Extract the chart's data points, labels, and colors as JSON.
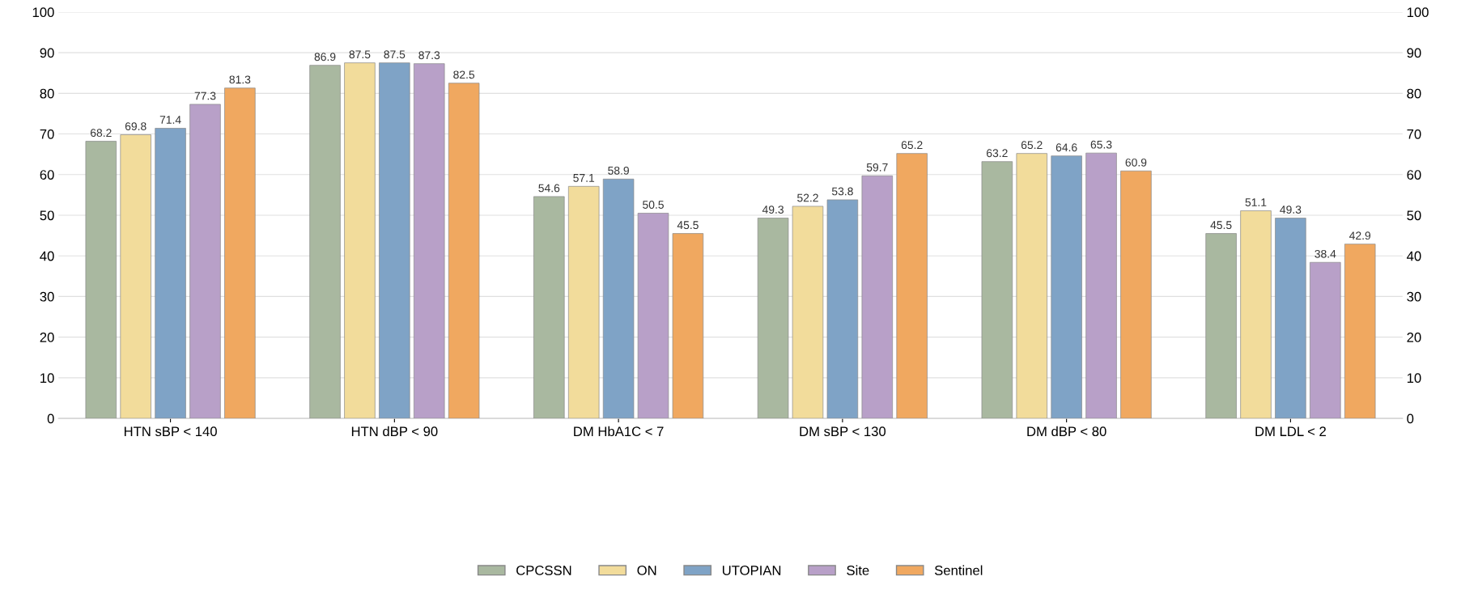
{
  "chart_data": {
    "type": "bar",
    "categories": [
      "HTN sBP < 140",
      "HTN dBP < 90",
      "DM HbA1C < 7",
      "DM sBP < 130",
      "DM dBP < 80",
      "DM LDL < 2"
    ],
    "series": [
      {
        "name": "CPCSSN",
        "color": "#a9b8a0",
        "values": [
          68.2,
          86.9,
          54.6,
          49.3,
          63.2,
          45.5
        ]
      },
      {
        "name": "ON",
        "color": "#f2dc9b",
        "values": [
          69.8,
          87.5,
          57.1,
          52.2,
          65.2,
          51.1
        ]
      },
      {
        "name": "UTOPIAN",
        "color": "#7fa3c6",
        "values": [
          71.4,
          87.5,
          58.9,
          53.8,
          64.6,
          49.3
        ]
      },
      {
        "name": "Site",
        "color": "#b8a0c8",
        "values": [
          77.3,
          87.3,
          50.5,
          59.7,
          65.3,
          38.4
        ]
      },
      {
        "name": "Sentinel",
        "color": "#f0a860",
        "values": [
          81.3,
          82.5,
          45.5,
          65.2,
          60.9,
          42.9
        ]
      }
    ],
    "ylim": [
      0,
      100
    ],
    "yticks": [
      0,
      10,
      20,
      30,
      40,
      50,
      60,
      70,
      80,
      90,
      100
    ],
    "y2lim": [
      0,
      100
    ],
    "y2ticks": [
      0,
      10,
      20,
      30,
      40,
      50,
      60,
      70,
      80,
      90,
      100
    ],
    "data_labels": true,
    "grid": "y",
    "legend": "bottom"
  }
}
